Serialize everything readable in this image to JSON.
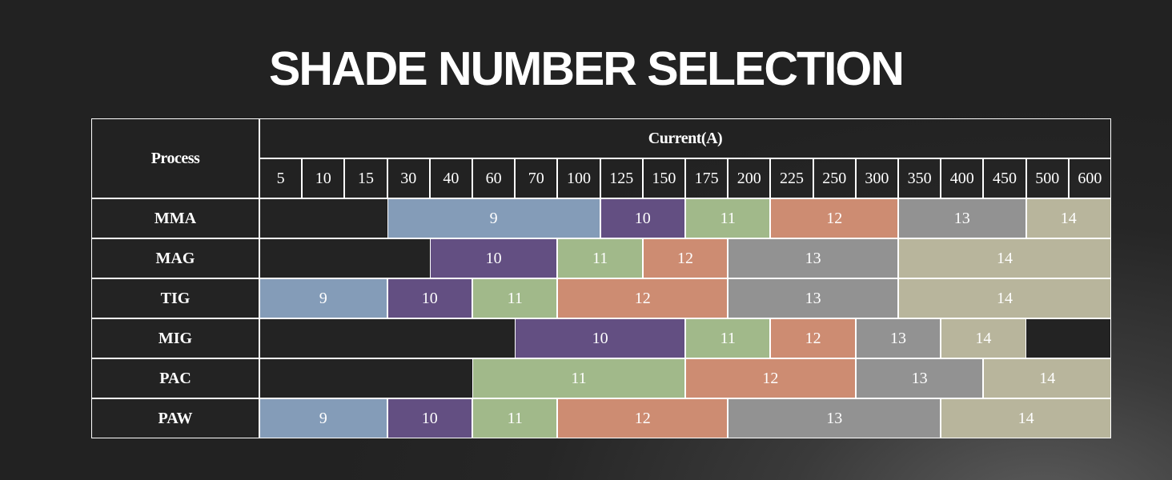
{
  "title": "SHADE NUMBER SELECTION",
  "table": {
    "process_header": "Process",
    "current_header": "Current(A)",
    "currents": [
      "5",
      "10",
      "15",
      "30",
      "40",
      "60",
      "70",
      "100",
      "125",
      "150",
      "175",
      "200",
      "225",
      "250",
      "300",
      "350",
      "400",
      "450",
      "500",
      "600"
    ],
    "rows": [
      {
        "process": "MMA",
        "shades": [
          {
            "label": "9",
            "from": "30",
            "to": "100",
            "color": "#849cb8"
          },
          {
            "label": "10",
            "from": "125",
            "to": "150",
            "color": "#634f82"
          },
          {
            "label": "11",
            "from": "175",
            "to": "200",
            "color": "#a1b98a"
          },
          {
            "label": "12",
            "from": "225",
            "to": "300",
            "color": "#cd8c72"
          },
          {
            "label": "13",
            "from": "350",
            "to": "450",
            "color": "#929292"
          },
          {
            "label": "14",
            "from": "500",
            "to": "600",
            "color": "#b8b59c"
          }
        ]
      },
      {
        "process": "MAG",
        "shades": [
          {
            "label": "10",
            "from": "40",
            "to": "70",
            "color": "#634f82"
          },
          {
            "label": "11",
            "from": "100",
            "to": "125",
            "color": "#a1b98a"
          },
          {
            "label": "12",
            "from": "150",
            "to": "175",
            "color": "#cd8c72"
          },
          {
            "label": "13",
            "from": "200",
            "to": "300",
            "color": "#929292"
          },
          {
            "label": "14",
            "from": "350",
            "to": "600",
            "color": "#b8b59c"
          }
        ]
      },
      {
        "process": "TIG",
        "shades": [
          {
            "label": "9",
            "from": "5",
            "to": "15",
            "color": "#849cb8"
          },
          {
            "label": "10",
            "from": "30",
            "to": "40",
            "color": "#634f82"
          },
          {
            "label": "11",
            "from": "60",
            "to": "70",
            "color": "#a1b98a"
          },
          {
            "label": "12",
            "from": "100",
            "to": "175",
            "color": "#cd8c72"
          },
          {
            "label": "13",
            "from": "200",
            "to": "300",
            "color": "#929292"
          },
          {
            "label": "14",
            "from": "350",
            "to": "600",
            "color": "#b8b59c"
          }
        ]
      },
      {
        "process": "MIG",
        "shades": [
          {
            "label": "10",
            "from": "70",
            "to": "150",
            "color": "#634f82"
          },
          {
            "label": "11",
            "from": "175",
            "to": "200",
            "color": "#a1b98a"
          },
          {
            "label": "12",
            "from": "225",
            "to": "250",
            "color": "#cd8c72"
          },
          {
            "label": "13",
            "from": "300",
            "to": "350",
            "color": "#929292"
          },
          {
            "label": "14",
            "from": "400",
            "to": "450",
            "color": "#b8b59c"
          }
        ]
      },
      {
        "process": "PAC",
        "shades": [
          {
            "label": "11",
            "from": "60",
            "to": "150",
            "color": "#a1b98a"
          },
          {
            "label": "12",
            "from": "175",
            "to": "250",
            "color": "#cd8c72"
          },
          {
            "label": "13",
            "from": "300",
            "to": "400",
            "color": "#929292"
          },
          {
            "label": "14",
            "from": "450",
            "to": "600",
            "color": "#b8b59c"
          }
        ]
      },
      {
        "process": "PAW",
        "shades": [
          {
            "label": "9",
            "from": "5",
            "to": "15",
            "color": "#849cb8"
          },
          {
            "label": "10",
            "from": "30",
            "to": "40",
            "color": "#634f82"
          },
          {
            "label": "11",
            "from": "60",
            "to": "70",
            "color": "#a1b98a"
          },
          {
            "label": "12",
            "from": "100",
            "to": "175",
            "color": "#cd8c72"
          },
          {
            "label": "13",
            "from": "200",
            "to": "350",
            "color": "#929292"
          },
          {
            "label": "14",
            "from": "400",
            "to": "600",
            "color": "#b8b59c"
          }
        ]
      }
    ]
  }
}
